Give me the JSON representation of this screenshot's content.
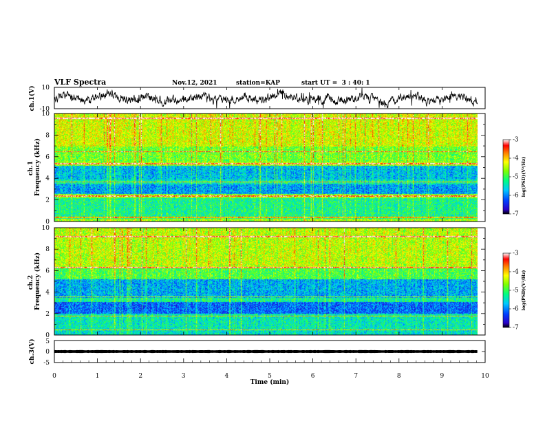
{
  "header": {
    "title": "VLF Spectra",
    "date": "Nov.12, 2021",
    "station": "station=KAP",
    "start": "start UT =  3 : 40: 1"
  },
  "chart_data": [
    {
      "type": "line",
      "name": "ch1-waveform",
      "ylabel": "ch.1(V)",
      "ylim": [
        -10,
        10
      ],
      "yticks": [
        "10",
        "-10"
      ],
      "xlim": [
        0,
        10
      ],
      "time_extent_min": 9.82
    },
    {
      "type": "heatmap",
      "name": "ch1-spectrogram",
      "ylabel": "ch.1\nFrequency (kHz)",
      "ylim": [
        0,
        10
      ],
      "yticks": [
        "0",
        "2",
        "4",
        "6",
        "8",
        "10"
      ],
      "xlim": [
        0,
        10
      ],
      "time_extent_min": 9.82,
      "colorbar": {
        "label": "log(PSD)(V²/Hz)",
        "range": [
          -7,
          -3
        ],
        "ticks": [
          "-3",
          "-4",
          "-5",
          "-6",
          "-7"
        ]
      }
    },
    {
      "type": "heatmap",
      "name": "ch2-spectrogram",
      "ylabel": "ch.2\nFrequency (kHz)",
      "ylim": [
        0,
        10
      ],
      "yticks": [
        "0",
        "2",
        "4",
        "6",
        "8",
        "10"
      ],
      "xlim": [
        0,
        10
      ],
      "time_extent_min": 9.82,
      "colorbar": {
        "label": "log(PSD)(V²/Hz)",
        "range": [
          -7,
          -3
        ],
        "ticks": [
          "-3",
          "-4",
          "-5",
          "-6",
          "-7"
        ]
      }
    },
    {
      "type": "line",
      "name": "ch3-waveform",
      "ylabel": "ch.3(V)",
      "ylim": [
        -5,
        5
      ],
      "yticks": [
        "5",
        "0",
        "-5"
      ],
      "xlim": [
        0,
        10
      ],
      "xlabel": "Time (min)",
      "xticks": [
        "0",
        "1",
        "2",
        "3",
        "4",
        "5",
        "6",
        "7",
        "8",
        "9",
        "10"
      ],
      "time_extent_min": 9.82
    }
  ]
}
